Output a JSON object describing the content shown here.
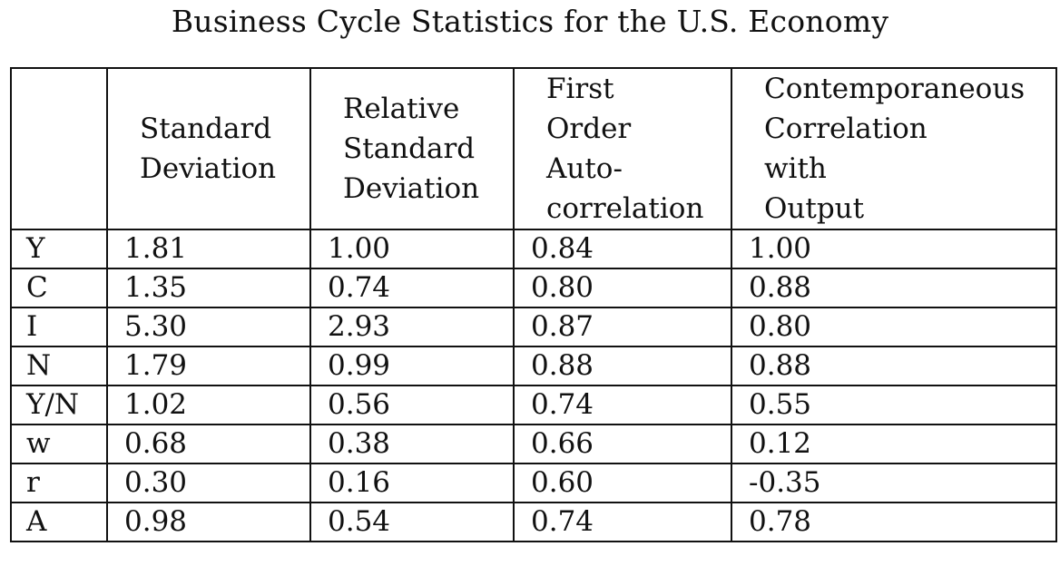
{
  "title": "Business Cycle Statistics for the U.S. Economy",
  "table": {
    "headers": [
      "",
      "Standard\nDeviation",
      "Relative\nStandard\nDeviation",
      "First\nOrder\nAuto-\ncorrelation",
      "Contemporaneous\nCorrelation\nwith\nOutput"
    ],
    "rows": [
      {
        "var": "Y",
        "sd": "1.81",
        "rel_sd": "1.00",
        "autocorr": "0.84",
        "corr_output": "1.00"
      },
      {
        "var": "C",
        "sd": "1.35",
        "rel_sd": "0.74",
        "autocorr": "0.80",
        "corr_output": "0.88"
      },
      {
        "var": "I",
        "sd": "5.30",
        "rel_sd": "2.93",
        "autocorr": "0.87",
        "corr_output": "0.80"
      },
      {
        "var": "N",
        "sd": "1.79",
        "rel_sd": "0.99",
        "autocorr": "0.88",
        "corr_output": "0.88"
      },
      {
        "var": "Y/N",
        "sd": "1.02",
        "rel_sd": "0.56",
        "autocorr": "0.74",
        "corr_output": "0.55"
      },
      {
        "var": "w",
        "sd": "0.68",
        "rel_sd": "0.38",
        "autocorr": "0.66",
        "corr_output": "0.12"
      },
      {
        "var": "r",
        "sd": "0.30",
        "rel_sd": "0.16",
        "autocorr": "0.60",
        "corr_output": "-0.35"
      },
      {
        "var": "A",
        "sd": "0.98",
        "rel_sd": "0.54",
        "autocorr": "0.74",
        "corr_output": "0.78"
      }
    ]
  }
}
